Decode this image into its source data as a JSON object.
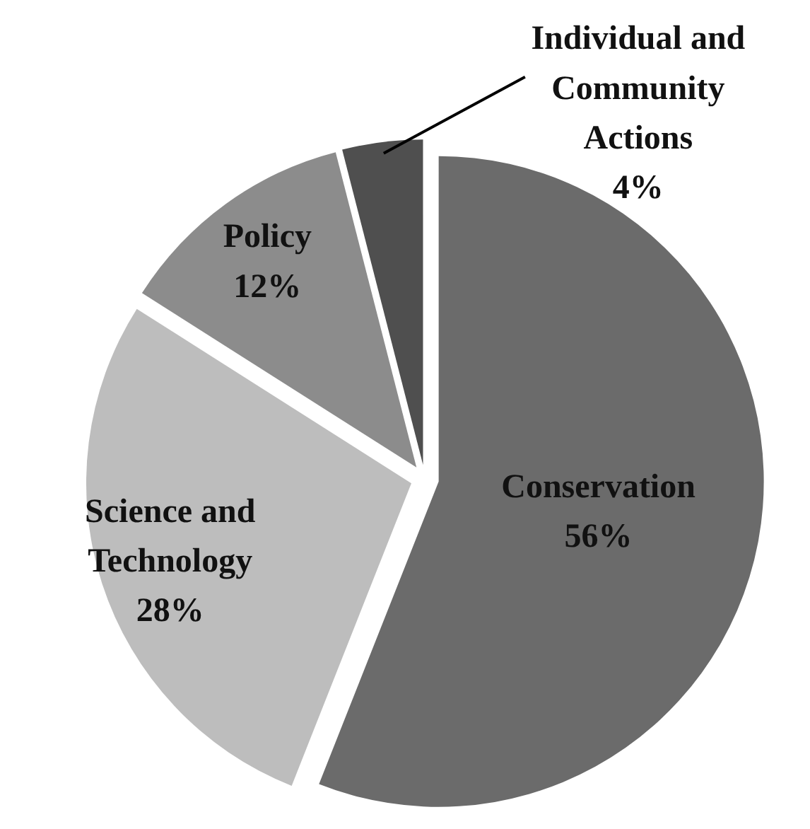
{
  "chart_data": {
    "type": "pie",
    "categories": [
      "Conservation",
      "Science and Technology",
      "Policy",
      "Individual and Community Actions"
    ],
    "values": [
      56,
      28,
      12,
      4
    ],
    "colors": [
      "#6b6b6b",
      "#bdbdbd",
      "#8c8c8c",
      "#4f4f4f"
    ],
    "value_labels": [
      "56%",
      "28%",
      "12%",
      "4%"
    ]
  }
}
